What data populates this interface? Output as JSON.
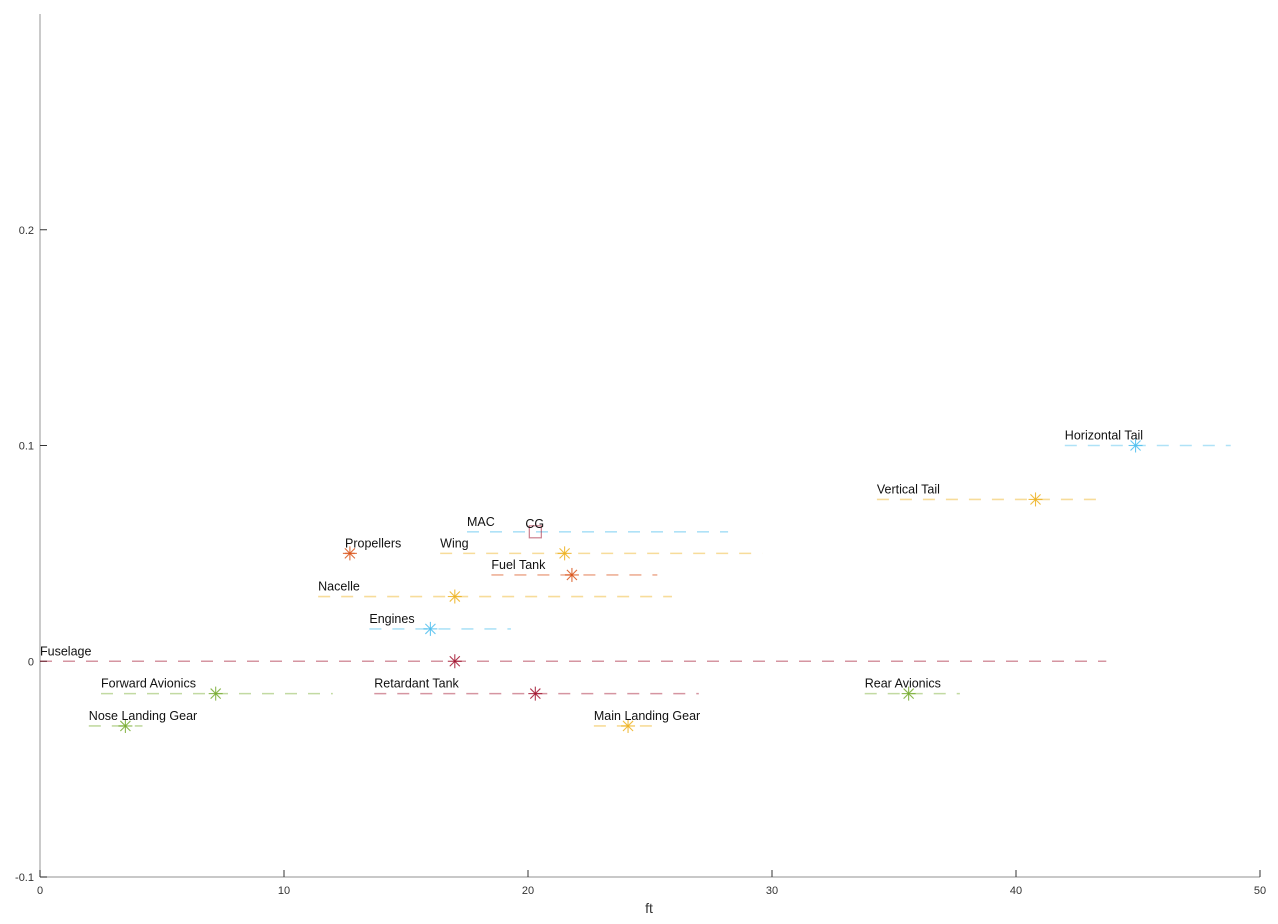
{
  "chart_data": {
    "type": "scatter",
    "title": "",
    "xlabel": "ft",
    "ylabel": "",
    "xlim": [
      0,
      50
    ],
    "ylim": [
      -0.1,
      0.3
    ],
    "xticks": [
      "0",
      "10",
      "20",
      "30",
      "40",
      "50"
    ],
    "yticks": [
      "-0.1",
      "0",
      "0.1",
      "0.2"
    ],
    "grid": false,
    "components": [
      {
        "name": "Horizontal Tail",
        "x_start": 42.0,
        "x_end": 48.8,
        "cg_x": 44.9,
        "y": 0.1,
        "color": "#4DBEEE"
      },
      {
        "name": "Vertical Tail",
        "x_start": 34.3,
        "x_end": 43.7,
        "cg_x": 40.8,
        "y": 0.075,
        "color": "#EDB120"
      },
      {
        "name": "MAC",
        "x_start": 17.5,
        "x_end": 28.2,
        "cg_x": null,
        "y": 0.06,
        "color": "#4DBEEE"
      },
      {
        "name": "Propellers",
        "x_start": 12.5,
        "x_end": 12.9,
        "cg_x": 12.7,
        "y": 0.05,
        "color": "#D95319"
      },
      {
        "name": "Wing",
        "x_start": 16.4,
        "x_end": 29.6,
        "cg_x": 21.5,
        "y": 0.05,
        "color": "#EDB120"
      },
      {
        "name": "Fuel Tank",
        "x_start": 18.5,
        "x_end": 25.3,
        "cg_x": 21.8,
        "y": 0.04,
        "color": "#D95319"
      },
      {
        "name": "Nacelle",
        "x_start": 11.4,
        "x_end": 25.9,
        "cg_x": 17.0,
        "y": 0.03,
        "color": "#EDB120"
      },
      {
        "name": "Engines",
        "x_start": 13.5,
        "x_end": 19.3,
        "cg_x": 16.0,
        "y": 0.015,
        "color": "#4DBEEE"
      },
      {
        "name": "Fuselage",
        "x_start": 0.0,
        "x_end": 43.7,
        "cg_x": 17.0,
        "y": 0.0,
        "color": "#A2142F"
      },
      {
        "name": "Forward Avionics",
        "x_start": 2.5,
        "x_end": 12.0,
        "cg_x": 7.2,
        "y": -0.015,
        "color": "#77AC30"
      },
      {
        "name": "Retardant Tank",
        "x_start": 13.7,
        "x_end": 27.0,
        "cg_x": 20.3,
        "y": -0.015,
        "color": "#A2142F"
      },
      {
        "name": "Rear Avionics",
        "x_start": 33.8,
        "x_end": 37.7,
        "cg_x": 35.6,
        "y": -0.015,
        "color": "#77AC30"
      },
      {
        "name": "Nose Landing Gear",
        "x_start": 2.0,
        "x_end": 4.2,
        "cg_x": 3.5,
        "y": -0.03,
        "color": "#77AC30"
      },
      {
        "name": "Main Landing Gear",
        "x_start": 22.7,
        "x_end": 25.5,
        "cg_x": 24.1,
        "y": -0.03,
        "color": "#EDB120"
      }
    ],
    "cg": {
      "label": "CG",
      "x": 20.3,
      "y": 0.06
    }
  }
}
